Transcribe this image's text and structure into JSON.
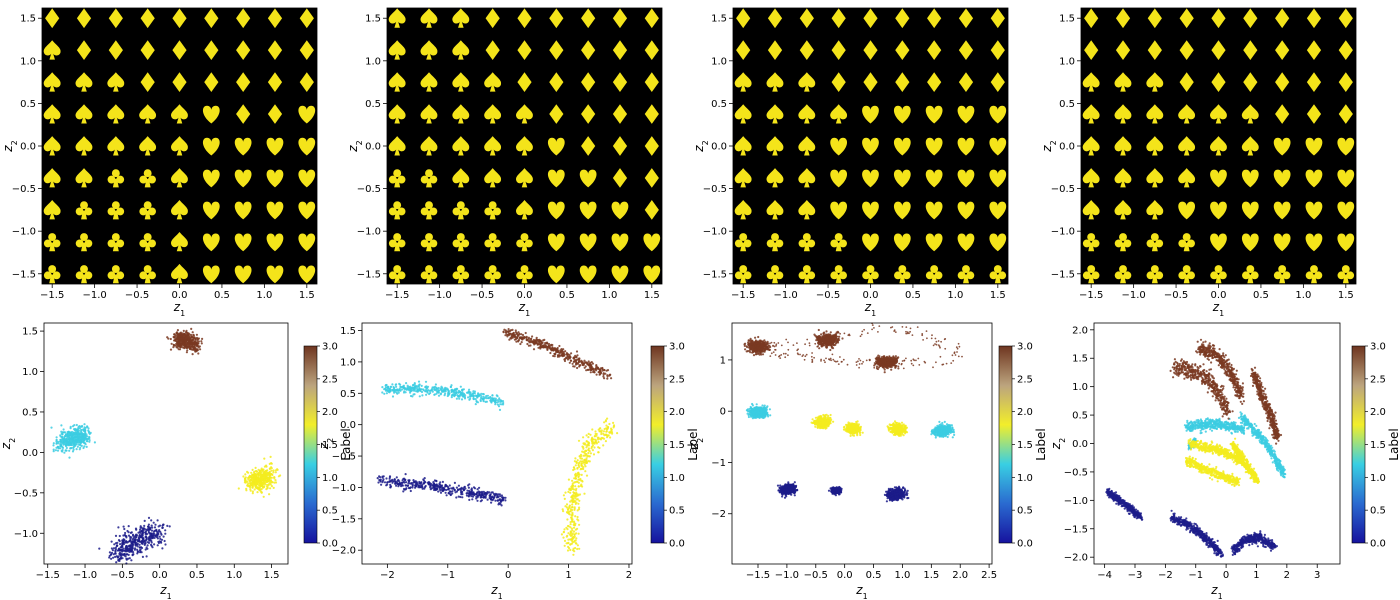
{
  "colormap": {
    "name": "Label",
    "range": [
      0,
      3
    ],
    "stops": [
      "#16129e",
      "#2a6ad0",
      "#39cfe3",
      "#f2ee2a",
      "#bca47e",
      "#6e3520"
    ],
    "ticks": [
      "0.0",
      "0.5",
      "1.0",
      "1.5",
      "2.0",
      "2.5",
      "3.0"
    ]
  },
  "point_colors": {
    "0": "#1c1c8a",
    "1": "#3ccde2",
    "2": "#f3ec1e",
    "3": "#7a3a22"
  },
  "grid_style": {
    "background": "#000000",
    "glyph_color": "#f4e41a"
  },
  "chart_data": [
    {
      "type": "heatmap",
      "panel": "top-1",
      "xlabel": "z_1",
      "ylabel": "z_2",
      "xlim": [
        -1.62,
        1.62
      ],
      "ylim": [
        -1.62,
        1.62
      ],
      "xticks": [
        -1.5,
        -1.0,
        -0.5,
        0.0,
        0.5,
        1.0,
        1.5
      ],
      "yticks": [
        -1.5,
        -1.0,
        -0.5,
        0.0,
        0.5,
        1.0,
        1.5
      ],
      "grid_size": 9,
      "grid_extent": [
        -1.5,
        1.5
      ],
      "rows_top_to_bottom": [
        "DDDDDDDDD",
        "SDDDDDDDD",
        "SSSDDDDDD",
        "SSSSSHDDH",
        "SSSSSHHHH",
        "SSCCSHHHH",
        "SCCCSHHHH",
        "CCCCSHHHH",
        "CCCCSHHHH"
      ]
    },
    {
      "type": "heatmap",
      "panel": "top-2",
      "xlabel": "z_1",
      "ylabel": "z_2",
      "xlim": [
        -1.62,
        1.62
      ],
      "ylim": [
        -1.62,
        1.62
      ],
      "xticks": [
        -1.5,
        -1.0,
        -0.5,
        0.0,
        0.5,
        1.0,
        1.5
      ],
      "yticks": [
        -1.5,
        -1.0,
        -0.5,
        0.0,
        0.5,
        1.0,
        1.5
      ],
      "grid_size": 9,
      "grid_extent": [
        -1.5,
        1.5
      ],
      "rows_top_to_bottom": [
        "SSSDDDDDD",
        "SSSDDDDDD",
        "SSSSDDDDD",
        "SSSSSDDDD",
        "SSSSSHDDD",
        "CCSSSHHDD",
        "CCCCSHHHD",
        "CCCCCHHHH",
        "CCCCCHHHH"
      ]
    },
    {
      "type": "heatmap",
      "panel": "top-3",
      "xlabel": "z_1",
      "ylabel": "z_2",
      "xlim": [
        -1.62,
        1.62
      ],
      "ylim": [
        -1.62,
        1.62
      ],
      "xticks": [
        -1.5,
        -1.0,
        -0.5,
        0.0,
        0.5,
        1.0,
        1.5
      ],
      "yticks": [
        -1.5,
        -1.0,
        -0.5,
        0.0,
        0.5,
        1.0,
        1.5
      ],
      "grid_size": 9,
      "grid_extent": [
        -1.5,
        1.5
      ],
      "rows_top_to_bottom": [
        "DDDDDDDDD",
        "DDDDDDDDD",
        "SSSDDDDDD",
        "SSSSHHHHH",
        "SSSHHHHHH",
        "SSSHHHHHH",
        "SSSHHHHHH",
        "CCCCHHHHH",
        "CCCCCCCCC"
      ]
    },
    {
      "type": "heatmap",
      "panel": "top-4",
      "xlabel": "z_1",
      "ylabel": "z_2",
      "xlim": [
        -1.62,
        1.62
      ],
      "ylim": [
        -1.62,
        1.62
      ],
      "xticks": [
        -1.5,
        -1.0,
        -0.5,
        0.0,
        0.5,
        1.0,
        1.5
      ],
      "yticks": [
        -1.5,
        -1.0,
        -0.5,
        0.0,
        0.5,
        1.0,
        1.5
      ],
      "grid_size": 9,
      "grid_extent": [
        -1.5,
        1.5
      ],
      "rows_top_to_bottom": [
        "DDDDDDDDD",
        "DDDDDDDDD",
        "SSSDDDDDD",
        "SSSSSSDDD",
        "SSSSSSHHH",
        "SSSSHHHHH",
        "SSSHHHHHH",
        "CCCCHHHHH",
        "CCCCCCCCC"
      ]
    },
    {
      "type": "scatter",
      "panel": "bottom-1",
      "xlabel": "z_1",
      "ylabel": "z_2",
      "colorbar_label": "Label",
      "xlim": [
        -1.55,
        1.72
      ],
      "ylim": [
        -1.38,
        1.6
      ],
      "xticks": [
        -1.5,
        -1.0,
        -0.5,
        0.0,
        0.5,
        1.0,
        1.5
      ],
      "yticks": [
        -1.0,
        -0.5,
        0.0,
        0.5,
        1.0,
        1.5
      ],
      "clusters": [
        {
          "label": 0,
          "points": [
            [
              -0.6,
              -1.26
            ],
            [
              -0.45,
              -1.18
            ],
            [
              -0.3,
              -1.1
            ],
            [
              -0.15,
              -1.03
            ],
            [
              -0.02,
              -0.98
            ]
          ],
          "width": 0.16
        },
        {
          "label": 1,
          "points": [
            [
              -1.3,
              0.13
            ],
            [
              -1.15,
              0.18
            ],
            [
              -1.0,
              0.2
            ]
          ],
          "width": 0.13
        },
        {
          "label": 2,
          "points": [
            [
              1.22,
              -0.38
            ],
            [
              1.35,
              -0.32
            ],
            [
              1.48,
              -0.3
            ]
          ],
          "width": 0.13
        },
        {
          "label": 3,
          "points": [
            [
              0.22,
              1.37
            ],
            [
              0.35,
              1.4
            ],
            [
              0.48,
              1.33
            ]
          ],
          "width": 0.1
        }
      ]
    },
    {
      "type": "scatter",
      "panel": "bottom-2",
      "xlabel": "z_1",
      "ylabel": "z_2",
      "colorbar_label": "Label",
      "xlim": [
        -2.42,
        2.05
      ],
      "ylim": [
        -2.22,
        1.62
      ],
      "xticks": [
        -2,
        -1,
        0,
        1,
        2
      ],
      "yticks": [
        -2.0,
        -1.5,
        -1.0,
        -0.5,
        0.0,
        0.5,
        1.0,
        1.5
      ],
      "clusters": [
        {
          "label": 0,
          "points": [
            [
              -2.15,
              -0.9
            ],
            [
              -1.4,
              -0.95
            ],
            [
              -0.8,
              -1.05
            ],
            [
              -0.05,
              -1.2
            ]
          ],
          "width": 0.09
        },
        {
          "label": 1,
          "points": [
            [
              -2.05,
              0.57
            ],
            [
              -1.2,
              0.55
            ],
            [
              -0.5,
              0.45
            ],
            [
              -0.1,
              0.35
            ]
          ],
          "width": 0.09
        },
        {
          "label": 2,
          "points": [
            [
              1.75,
              0.0
            ],
            [
              1.35,
              -0.3
            ],
            [
              1.1,
              -0.9
            ],
            [
              1.05,
              -1.5
            ],
            [
              1.05,
              -2.0
            ]
          ],
          "width": 0.13
        },
        {
          "label": 3,
          "points": [
            [
              -0.05,
              1.47
            ],
            [
              0.6,
              1.27
            ],
            [
              1.2,
              0.99
            ],
            [
              1.68,
              0.78
            ]
          ],
          "width": 0.08
        }
      ]
    },
    {
      "type": "scatter",
      "panel": "bottom-3",
      "xlabel": "z_1",
      "ylabel": "z_2",
      "colorbar_label": "Label",
      "xlim": [
        -1.95,
        2.55
      ],
      "ylim": [
        -2.98,
        1.72
      ],
      "xticks": [
        -1.5,
        -1.0,
        -0.5,
        0.0,
        0.5,
        1.0,
        1.5,
        2.0,
        2.5
      ],
      "yticks": [
        -2,
        -1,
        0,
        1
      ],
      "clusters": [
        {
          "label": 0,
          "points": [
            [
              -1.05,
              -1.55
            ],
            [
              -0.9,
              -1.5
            ]
          ],
          "width": 0.09
        },
        {
          "label": 0,
          "points": [
            [
              -0.2,
              -1.55
            ],
            [
              -0.1,
              -1.55
            ]
          ],
          "width": 0.05
        },
        {
          "label": 0,
          "points": [
            [
              0.8,
              -1.63
            ],
            [
              1.0,
              -1.6
            ]
          ],
          "width": 0.1
        },
        {
          "label": 1,
          "points": [
            [
              -1.6,
              -0.02
            ],
            [
              -1.38,
              -0.02
            ]
          ],
          "width": 0.1
        },
        {
          "label": 1,
          "points": [
            [
              1.6,
              -0.4
            ],
            [
              1.8,
              -0.35
            ]
          ],
          "width": 0.1
        },
        {
          "label": 2,
          "points": [
            [
              -0.45,
              -0.2
            ],
            [
              -0.32,
              -0.22
            ]
          ],
          "width": 0.1
        },
        {
          "label": 2,
          "points": [
            [
              0.1,
              -0.33
            ],
            [
              0.2,
              -0.35
            ]
          ],
          "width": 0.1
        },
        {
          "label": 2,
          "points": [
            [
              0.85,
              -0.33
            ],
            [
              0.98,
              -0.36
            ]
          ],
          "width": 0.1
        },
        {
          "label": 3,
          "points": [
            [
              -1.6,
              1.3
            ],
            [
              -1.3,
              1.2
            ],
            [
              -0.8,
              1.05
            ],
            [
              -0.2,
              0.98
            ],
            [
              0.6,
              0.95
            ],
            [
              1.4,
              0.95
            ],
            [
              1.95,
              1.05
            ],
            [
              1.9,
              1.25
            ],
            [
              1.3,
              1.52
            ],
            [
              0.5,
              1.6
            ],
            [
              -0.2,
              1.42
            ],
            [
              -0.9,
              1.28
            ],
            [
              -1.6,
              1.3
            ]
          ],
          "width": 0.1,
          "sparse": true
        },
        {
          "label": 3,
          "points": [
            [
              -1.6,
              1.27
            ],
            [
              -1.4,
              1.25
            ]
          ],
          "width": 0.12
        },
        {
          "label": 3,
          "points": [
            [
              -0.4,
              1.38
            ],
            [
              -0.2,
              1.38
            ]
          ],
          "width": 0.12
        },
        {
          "label": 3,
          "points": [
            [
              0.6,
              0.96
            ],
            [
              0.85,
              0.96
            ]
          ],
          "width": 0.1
        }
      ]
    },
    {
      "type": "scatter",
      "panel": "bottom-4",
      "xlabel": "z_1",
      "ylabel": "z_2",
      "colorbar_label": "Label",
      "xlim": [
        -4.35,
        3.75
      ],
      "ylim": [
        -2.12,
        2.12
      ],
      "xticks": [
        -4,
        -3,
        -2,
        -1,
        0,
        1,
        2,
        3
      ],
      "yticks": [
        -2.0,
        -1.5,
        -1.0,
        -0.5,
        0.0,
        0.5,
        1.0,
        1.5,
        2.0
      ],
      "clusters": [
        {
          "label": 0,
          "points": [
            [
              -3.9,
              -0.85
            ],
            [
              -3.4,
              -1.05
            ],
            [
              -2.8,
              -1.3
            ]
          ],
          "width": 0.06
        },
        {
          "label": 0,
          "points": [
            [
              -1.8,
              -1.3
            ],
            [
              -1.2,
              -1.45
            ],
            [
              -0.6,
              -1.7
            ],
            [
              -0.15,
              -1.95
            ]
          ],
          "width": 0.08
        },
        {
          "label": 0,
          "points": [
            [
              0.2,
              -1.9
            ],
            [
              0.6,
              -1.7
            ],
            [
              1.1,
              -1.65
            ],
            [
              1.6,
              -1.82
            ]
          ],
          "width": 0.08
        },
        {
          "label": 1,
          "points": [
            [
              -1.3,
              0.3
            ],
            [
              -0.3,
              0.35
            ],
            [
              0.6,
              0.25
            ]
          ],
          "width": 0.09
        },
        {
          "label": 1,
          "points": [
            [
              0.5,
              0.48
            ],
            [
              1.0,
              0.2
            ],
            [
              1.5,
              -0.15
            ],
            [
              1.9,
              -0.55
            ]
          ],
          "width": 0.08
        },
        {
          "label": 1,
          "points": [
            [
              -1.0,
              0.05
            ],
            [
              -1.2,
              -0.05
            ]
          ],
          "width": 0.05,
          "sparse": true
        },
        {
          "label": 2,
          "points": [
            [
              -1.2,
              0.0
            ],
            [
              -0.3,
              -0.1
            ],
            [
              0.5,
              -0.3
            ]
          ],
          "width": 0.08
        },
        {
          "label": 2,
          "points": [
            [
              -1.3,
              -0.3
            ],
            [
              -0.5,
              -0.5
            ],
            [
              0.4,
              -0.68
            ]
          ],
          "width": 0.08
        },
        {
          "label": 2,
          "points": [
            [
              0.2,
              0.0
            ],
            [
              0.6,
              -0.35
            ],
            [
              1.05,
              -0.65
            ]
          ],
          "width": 0.08
        },
        {
          "label": 3,
          "points": [
            [
              -1.7,
              1.35
            ],
            [
              -1.2,
              1.3
            ],
            [
              -0.6,
              1.15
            ],
            [
              -0.2,
              0.85
            ],
            [
              0.05,
              0.55
            ]
          ],
          "width": 0.14
        },
        {
          "label": 3,
          "points": [
            [
              -0.9,
              1.7
            ],
            [
              -0.3,
              1.55
            ],
            [
              0.2,
              1.2
            ],
            [
              0.5,
              0.85
            ]
          ],
          "width": 0.12
        },
        {
          "label": 3,
          "points": [
            [
              0.9,
              1.25
            ],
            [
              1.2,
              0.8
            ],
            [
              1.5,
              0.45
            ],
            [
              1.7,
              0.1
            ]
          ],
          "width": 0.1
        }
      ]
    }
  ]
}
